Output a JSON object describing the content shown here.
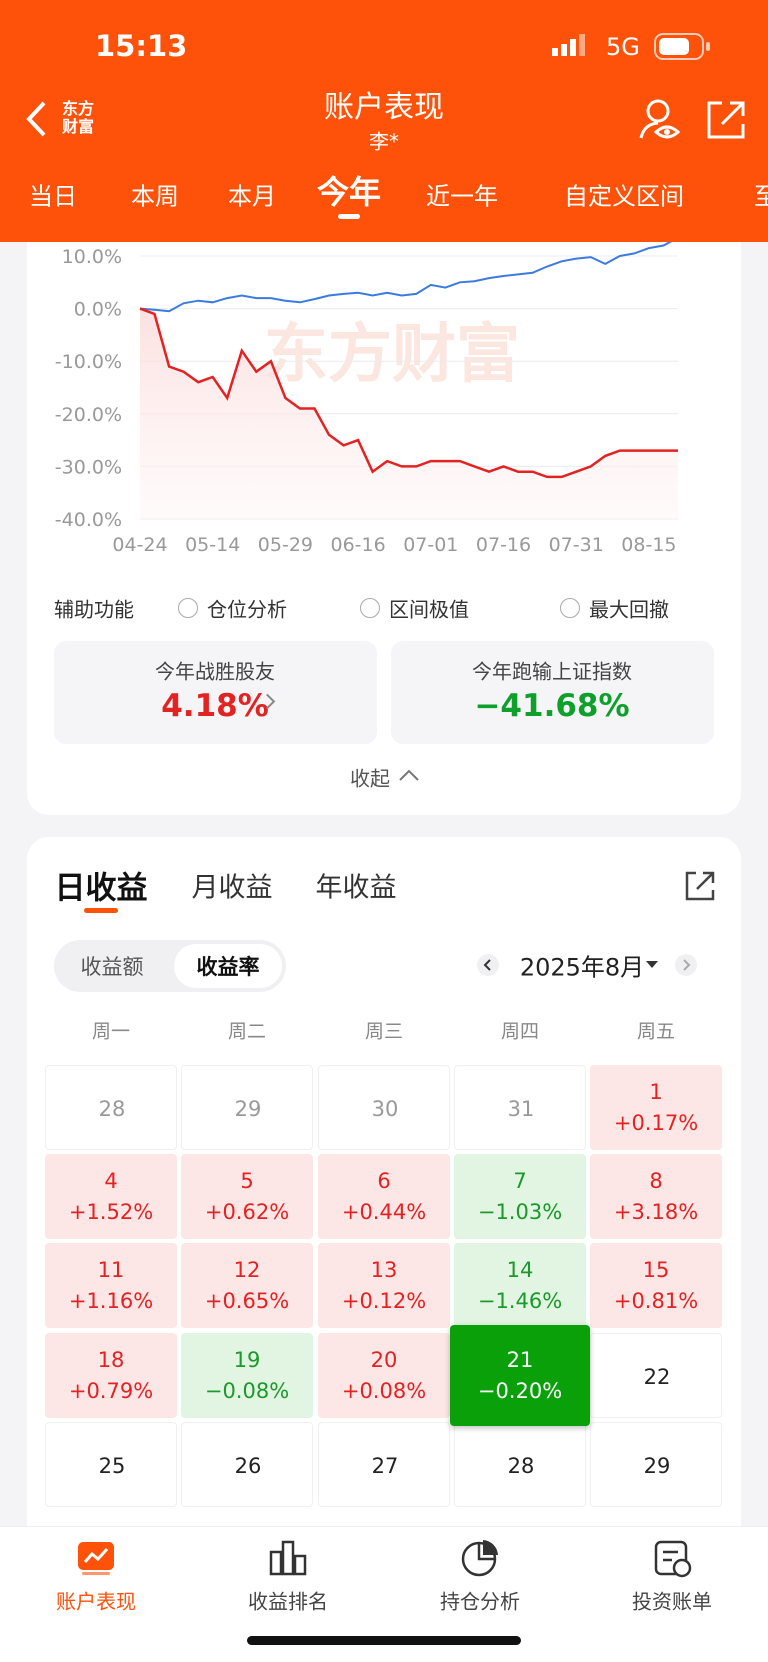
{
  "status": {
    "time": "15:13",
    "network": "5G"
  },
  "header": {
    "logo": [
      "东方",
      "财富"
    ],
    "title": "账户表现",
    "subtitle": "李*",
    "tabs": [
      "当日",
      "本周",
      "本月",
      "今年",
      "近一年",
      "自定义区间",
      "至"
    ],
    "active": 3
  },
  "chart_data": {
    "type": "line",
    "watermark": "东方财富",
    "categories": [
      "04-24",
      null,
      null,
      null,
      null,
      "05-14",
      null,
      null,
      null,
      null,
      "05-29",
      null,
      null,
      null,
      null,
      "06-16",
      null,
      null,
      null,
      null,
      "07-01",
      null,
      null,
      null,
      null,
      "07-16",
      null,
      null,
      null,
      null,
      "07-31",
      null,
      null,
      null,
      null,
      "08-15",
      null,
      null
    ],
    "series": [
      {
        "color": "#3b7be0",
        "values": [
          0,
          -0.2,
          -0.5,
          1,
          1.5,
          1.2,
          2,
          2.5,
          2,
          2,
          1.5,
          1.2,
          1.8,
          2.5,
          2.8,
          3,
          2.5,
          3,
          2.5,
          2.8,
          4.5,
          4,
          5,
          5.2,
          5.8,
          6.2,
          6.5,
          6.8,
          8,
          9,
          9.5,
          9.8,
          8.5,
          10,
          10.5,
          11.5,
          12,
          13.5
        ]
      },
      {
        "color": "#e32222",
        "area": true,
        "values": [
          0,
          -1,
          -11,
          -12,
          -14,
          -13,
          -17,
          -8,
          -12,
          -10,
          -17,
          -19,
          -19,
          -24,
          -26,
          -25,
          -31,
          -29,
          -30,
          -30,
          -29,
          -29,
          -29,
          -30,
          -31,
          -30,
          -31,
          -31,
          -32,
          -32,
          -31,
          -30,
          -28,
          -27,
          -27,
          -27,
          -27,
          -27
        ]
      }
    ],
    "ylim": [
      -40,
      10
    ],
    "yticks": [
      {
        "value": 10,
        "label": "10.0%"
      },
      {
        "value": 0,
        "label": "0.0%"
      },
      {
        "value": -10,
        "label": "-10.0%"
      },
      {
        "value": -20,
        "label": "-20.0%"
      },
      {
        "value": -30,
        "label": "-30.0%"
      },
      {
        "value": -40,
        "label": "-40.0%"
      }
    ],
    "grid": true
  },
  "aux": {
    "label": "辅助功能",
    "options": [
      "仓位分析",
      "区间极值",
      "最大回撤"
    ]
  },
  "stats": [
    {
      "label": "今年战胜股友",
      "value": "4.18%",
      "tone": "up"
    },
    {
      "label": "今年跑输上证指数",
      "value": "−41.68%",
      "tone": "down"
    }
  ],
  "collapse": "收起",
  "returns": {
    "tabs": [
      "日收益",
      "月收益",
      "年收益"
    ],
    "active": 0,
    "toggle": [
      "收益额",
      "收益率"
    ],
    "toggle_active": 1,
    "month": "2025年8月",
    "weekdays": [
      "周一",
      "周二",
      "周三",
      "周四",
      "周五"
    ],
    "rows": [
      [
        {
          "day": 28,
          "muted": true
        },
        {
          "day": 29,
          "muted": true
        },
        {
          "day": 30,
          "muted": true
        },
        {
          "day": 31,
          "muted": true
        },
        {
          "day": 1,
          "change": "+0.17%"
        }
      ],
      [
        {
          "day": 4,
          "change": "+1.52%"
        },
        {
          "day": 5,
          "change": "+0.62%"
        },
        {
          "day": 6,
          "change": "+0.44%"
        },
        {
          "day": 7,
          "change": "−1.03%"
        },
        {
          "day": 8,
          "change": "+3.18%"
        }
      ],
      [
        {
          "day": 11,
          "change": "+1.16%"
        },
        {
          "day": 12,
          "change": "+0.65%"
        },
        {
          "day": 13,
          "change": "+0.12%"
        },
        {
          "day": 14,
          "change": "−1.46%"
        },
        {
          "day": 15,
          "change": "+0.81%"
        }
      ],
      [
        {
          "day": 18,
          "change": "+0.79%"
        },
        {
          "day": 19,
          "change": "−0.08%"
        },
        {
          "day": 20,
          "change": "+0.08%"
        },
        {
          "day": 21,
          "change": "−0.20%",
          "selected": true
        },
        {
          "day": 22
        }
      ],
      [
        {
          "day": 25
        },
        {
          "day": 26
        },
        {
          "day": 27
        },
        {
          "day": 28
        },
        {
          "day": 29
        }
      ]
    ]
  },
  "nav": {
    "items": [
      "账户表现",
      "收益排名",
      "持仓分析",
      "投资账单"
    ],
    "active": 0
  }
}
